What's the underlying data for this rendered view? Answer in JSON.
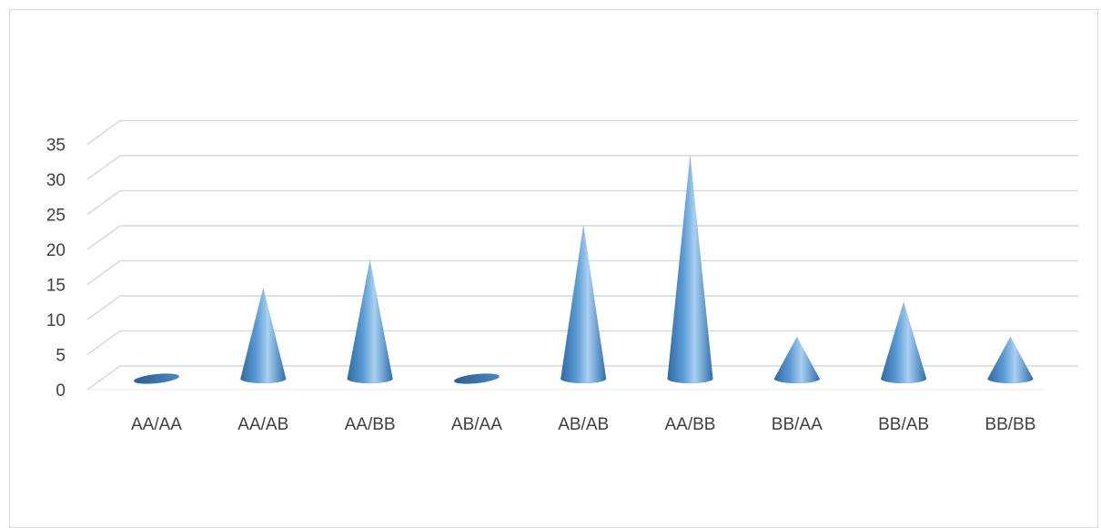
{
  "chart_data": {
    "type": "bar",
    "bar_shape": "cone-3d",
    "title": "",
    "xlabel": "",
    "ylabel": "",
    "categories": [
      "AA/AA",
      "AA/AB",
      "AA/BB",
      "AB/AA",
      "AB/AB",
      "AA/BB",
      "BB/AA",
      "BB/AB",
      "BB/BB"
    ],
    "values": [
      0,
      13,
      17,
      0,
      22,
      32,
      6,
      11,
      6
    ],
    "ylim": [
      0,
      35
    ],
    "yticks": [
      0,
      5,
      10,
      15,
      20,
      25,
      30,
      35
    ],
    "grid": true,
    "legend": "none",
    "colors": {
      "bar": "#5b9bd5",
      "bar_dark": "#2e6aa3",
      "bar_light": "#a9d0ef",
      "grid": "#d9d9d9",
      "text": "#404040"
    }
  }
}
